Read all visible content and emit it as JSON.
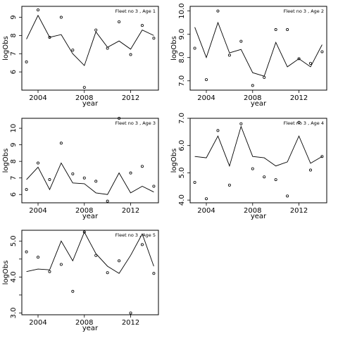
{
  "chart_data": [
    {
      "type": "line",
      "title": "Fleet no 3 , Age 1",
      "xlabel": "year",
      "ylabel": "logObs",
      "xlim": [
        2002.6,
        2014.4
      ],
      "ylim": [
        5.0,
        9.6
      ],
      "xticks": [
        2004,
        2008,
        2012
      ],
      "yticks": [
        6,
        7,
        8,
        9
      ],
      "ytick_labels": [
        "6",
        "7",
        "8",
        "9"
      ],
      "x": [
        2003,
        2004,
        2005,
        2006,
        2007,
        2008,
        2009,
        2010,
        2011,
        2012,
        2013,
        2014
      ],
      "series": [
        {
          "kind": "line",
          "values": [
            7.8,
            9.1,
            7.9,
            8.05,
            7.0,
            6.35,
            8.2,
            7.35,
            7.7,
            7.25,
            8.3,
            8.0
          ]
        },
        {
          "kind": "points",
          "values": [
            6.55,
            9.4,
            7.9,
            9.0,
            7.2,
            5.15,
            8.3,
            7.3,
            8.75,
            6.95,
            8.55,
            7.85
          ]
        }
      ]
    },
    {
      "type": "line",
      "title": "Fleet no 3 , Age 2",
      "xlabel": "year",
      "ylabel": "logObs",
      "xlim": [
        2002.6,
        2014.4
      ],
      "ylim": [
        6.6,
        10.2
      ],
      "xticks": [
        2004,
        2008,
        2012
      ],
      "yticks": [
        7,
        8,
        9,
        10
      ],
      "ytick_labels": [
        "7.0",
        "8.0",
        "9.0",
        "10.0"
      ],
      "x": [
        2003,
        2004,
        2005,
        2006,
        2007,
        2008,
        2009,
        2010,
        2011,
        2012,
        2013,
        2014
      ],
      "series": [
        {
          "kind": "line",
          "values": [
            9.3,
            8.0,
            9.5,
            8.2,
            8.35,
            7.35,
            7.2,
            8.65,
            7.6,
            7.95,
            7.6,
            8.55
          ]
        },
        {
          "kind": "points",
          "values": [
            8.4,
            7.05,
            10.0,
            8.1,
            8.7,
            6.8,
            7.15,
            9.2,
            9.2,
            7.95,
            7.75,
            8.25
          ]
        }
      ]
    },
    {
      "type": "line",
      "title": "Fleet no 3 , Age 3",
      "xlabel": "year",
      "ylabel": "logObs",
      "xlim": [
        2002.6,
        2014.4
      ],
      "ylim": [
        5.5,
        10.6
      ],
      "xticks": [
        2004,
        2008,
        2012
      ],
      "yticks": [
        6,
        7,
        8,
        9,
        10
      ],
      "ytick_labels": [
        "6",
        "7",
        "8",
        "9",
        "10"
      ],
      "x": [
        2003,
        2004,
        2005,
        2006,
        2007,
        2008,
        2009,
        2010,
        2011,
        2012,
        2013,
        2014
      ],
      "series": [
        {
          "kind": "line",
          "values": [
            6.9,
            7.65,
            6.3,
            7.9,
            6.7,
            6.65,
            6.1,
            6.0,
            7.3,
            6.1,
            6.5,
            6.15
          ]
        },
        {
          "kind": "points",
          "values": [
            6.3,
            7.9,
            6.9,
            9.1,
            7.25,
            7.0,
            6.8,
            5.6,
            10.6,
            7.3,
            7.7,
            6.5
          ]
        }
      ]
    },
    {
      "type": "line",
      "title": "Fleet no 3 , Age 4",
      "xlabel": "year",
      "ylabel": "logObs",
      "xlim": [
        2002.6,
        2014.4
      ],
      "ylim": [
        3.9,
        7.0
      ],
      "xticks": [
        2004,
        2008,
        2012
      ],
      "yticks": [
        4,
        5,
        6,
        7
      ],
      "ytick_labels": [
        "4.0",
        "5.0",
        "6.0",
        "7.0"
      ],
      "x": [
        2003,
        2004,
        2005,
        2006,
        2007,
        2008,
        2009,
        2010,
        2011,
        2012,
        2013,
        2014
      ],
      "series": [
        {
          "kind": "line",
          "values": [
            5.6,
            5.55,
            6.35,
            5.25,
            6.7,
            5.6,
            5.55,
            5.25,
            5.4,
            6.35,
            5.35,
            5.6
          ]
        },
        {
          "kind": "points",
          "values": [
            4.65,
            4.05,
            6.55,
            4.55,
            6.8,
            5.15,
            4.85,
            4.75,
            4.15,
            6.85,
            5.1,
            5.6
          ]
        }
      ]
    },
    {
      "type": "line",
      "title": "Fleet no 3 , Age 5",
      "xlabel": "year",
      "ylabel": "logObs",
      "xlim": [
        2002.6,
        2014.4
      ],
      "ylim": [
        2.95,
        5.3
      ],
      "xticks": [
        2004,
        2008,
        2012
      ],
      "yticks": [
        3.0,
        3.5,
        4.0,
        4.5,
        5.0
      ],
      "ytick_labels": [
        "3.0",
        "",
        "4.0",
        "",
        "5.0"
      ],
      "x": [
        2003,
        2004,
        2005,
        2006,
        2007,
        2008,
        2009,
        2010,
        2011,
        2012,
        2013,
        2014
      ],
      "series": [
        {
          "kind": "line",
          "values": [
            4.15,
            4.22,
            4.2,
            5.0,
            4.45,
            5.25,
            4.65,
            4.3,
            4.1,
            4.6,
            5.2,
            4.3
          ]
        },
        {
          "kind": "points",
          "values": [
            4.7,
            4.55,
            4.15,
            4.35,
            3.6,
            5.25,
            4.6,
            4.12,
            4.45,
            3.0,
            4.9,
            4.1
          ]
        }
      ]
    }
  ]
}
